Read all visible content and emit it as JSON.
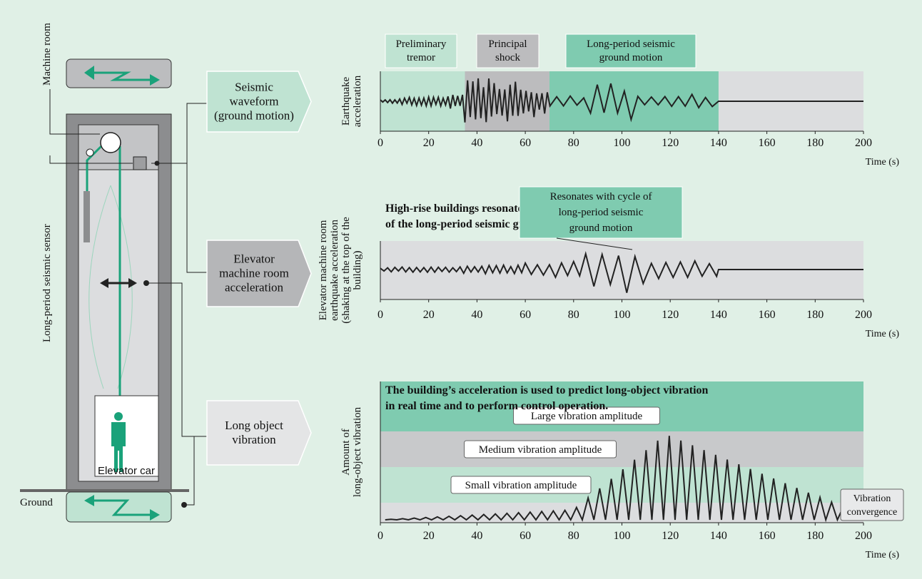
{
  "left_diagram": {
    "machine_room": "Machine room",
    "sensor": "Long-period seismic sensor",
    "car": "Elevator car",
    "ground": "Ground"
  },
  "flow_labels": [
    [
      "Seismic",
      "waveform",
      "(ground motion)"
    ],
    [
      "Elevator",
      "machine room",
      "acceleration"
    ],
    [
      "Long object",
      "vibration"
    ]
  ],
  "charts": [
    {
      "y_label": [
        "Earthquake",
        "acceleration"
      ],
      "x_label": "Time (s)",
      "xlim": [
        0,
        200
      ],
      "xticks": [
        0,
        20,
        40,
        60,
        80,
        100,
        120,
        140,
        160,
        180,
        200
      ],
      "phases": [
        {
          "label": [
            "Preliminary",
            "tremor"
          ],
          "start": 0,
          "end": 35
        },
        {
          "label": [
            "Principal",
            "shock"
          ],
          "start": 35,
          "end": 70
        },
        {
          "label": [
            "Long-period seismic",
            "ground motion"
          ],
          "start": 70,
          "end": 140
        }
      ]
    },
    {
      "heading": [
        "High-rise buildings resonate with the cycle",
        "of the long-period seismic ground motion."
      ],
      "callout": [
        "Resonates with cycle of",
        "long-period seismic",
        "ground motion"
      ],
      "y_label": [
        "Elevator machine room",
        "earthquake acceleration",
        "(shaking at the top of the",
        "building)"
      ],
      "x_label": "Time (s)",
      "xlim": [
        0,
        200
      ],
      "xticks": [
        0,
        20,
        40,
        60,
        80,
        100,
        120,
        140,
        160,
        180,
        200
      ]
    },
    {
      "heading": [
        "The building’s acceleration is used to predict long-object vibration",
        "in real time and to perform control operation."
      ],
      "bands": [
        "Large vibration amplitude",
        "Medium vibration amplitude",
        "Small vibration amplitude"
      ],
      "note": [
        "Vibration",
        "convergence"
      ],
      "y_label": [
        "Amount of",
        "long-object vibration"
      ],
      "x_label": "Time (s)",
      "xlim": [
        0,
        200
      ],
      "xticks": [
        0,
        20,
        40,
        60,
        80,
        100,
        120,
        140,
        160,
        180,
        200
      ]
    }
  ]
}
